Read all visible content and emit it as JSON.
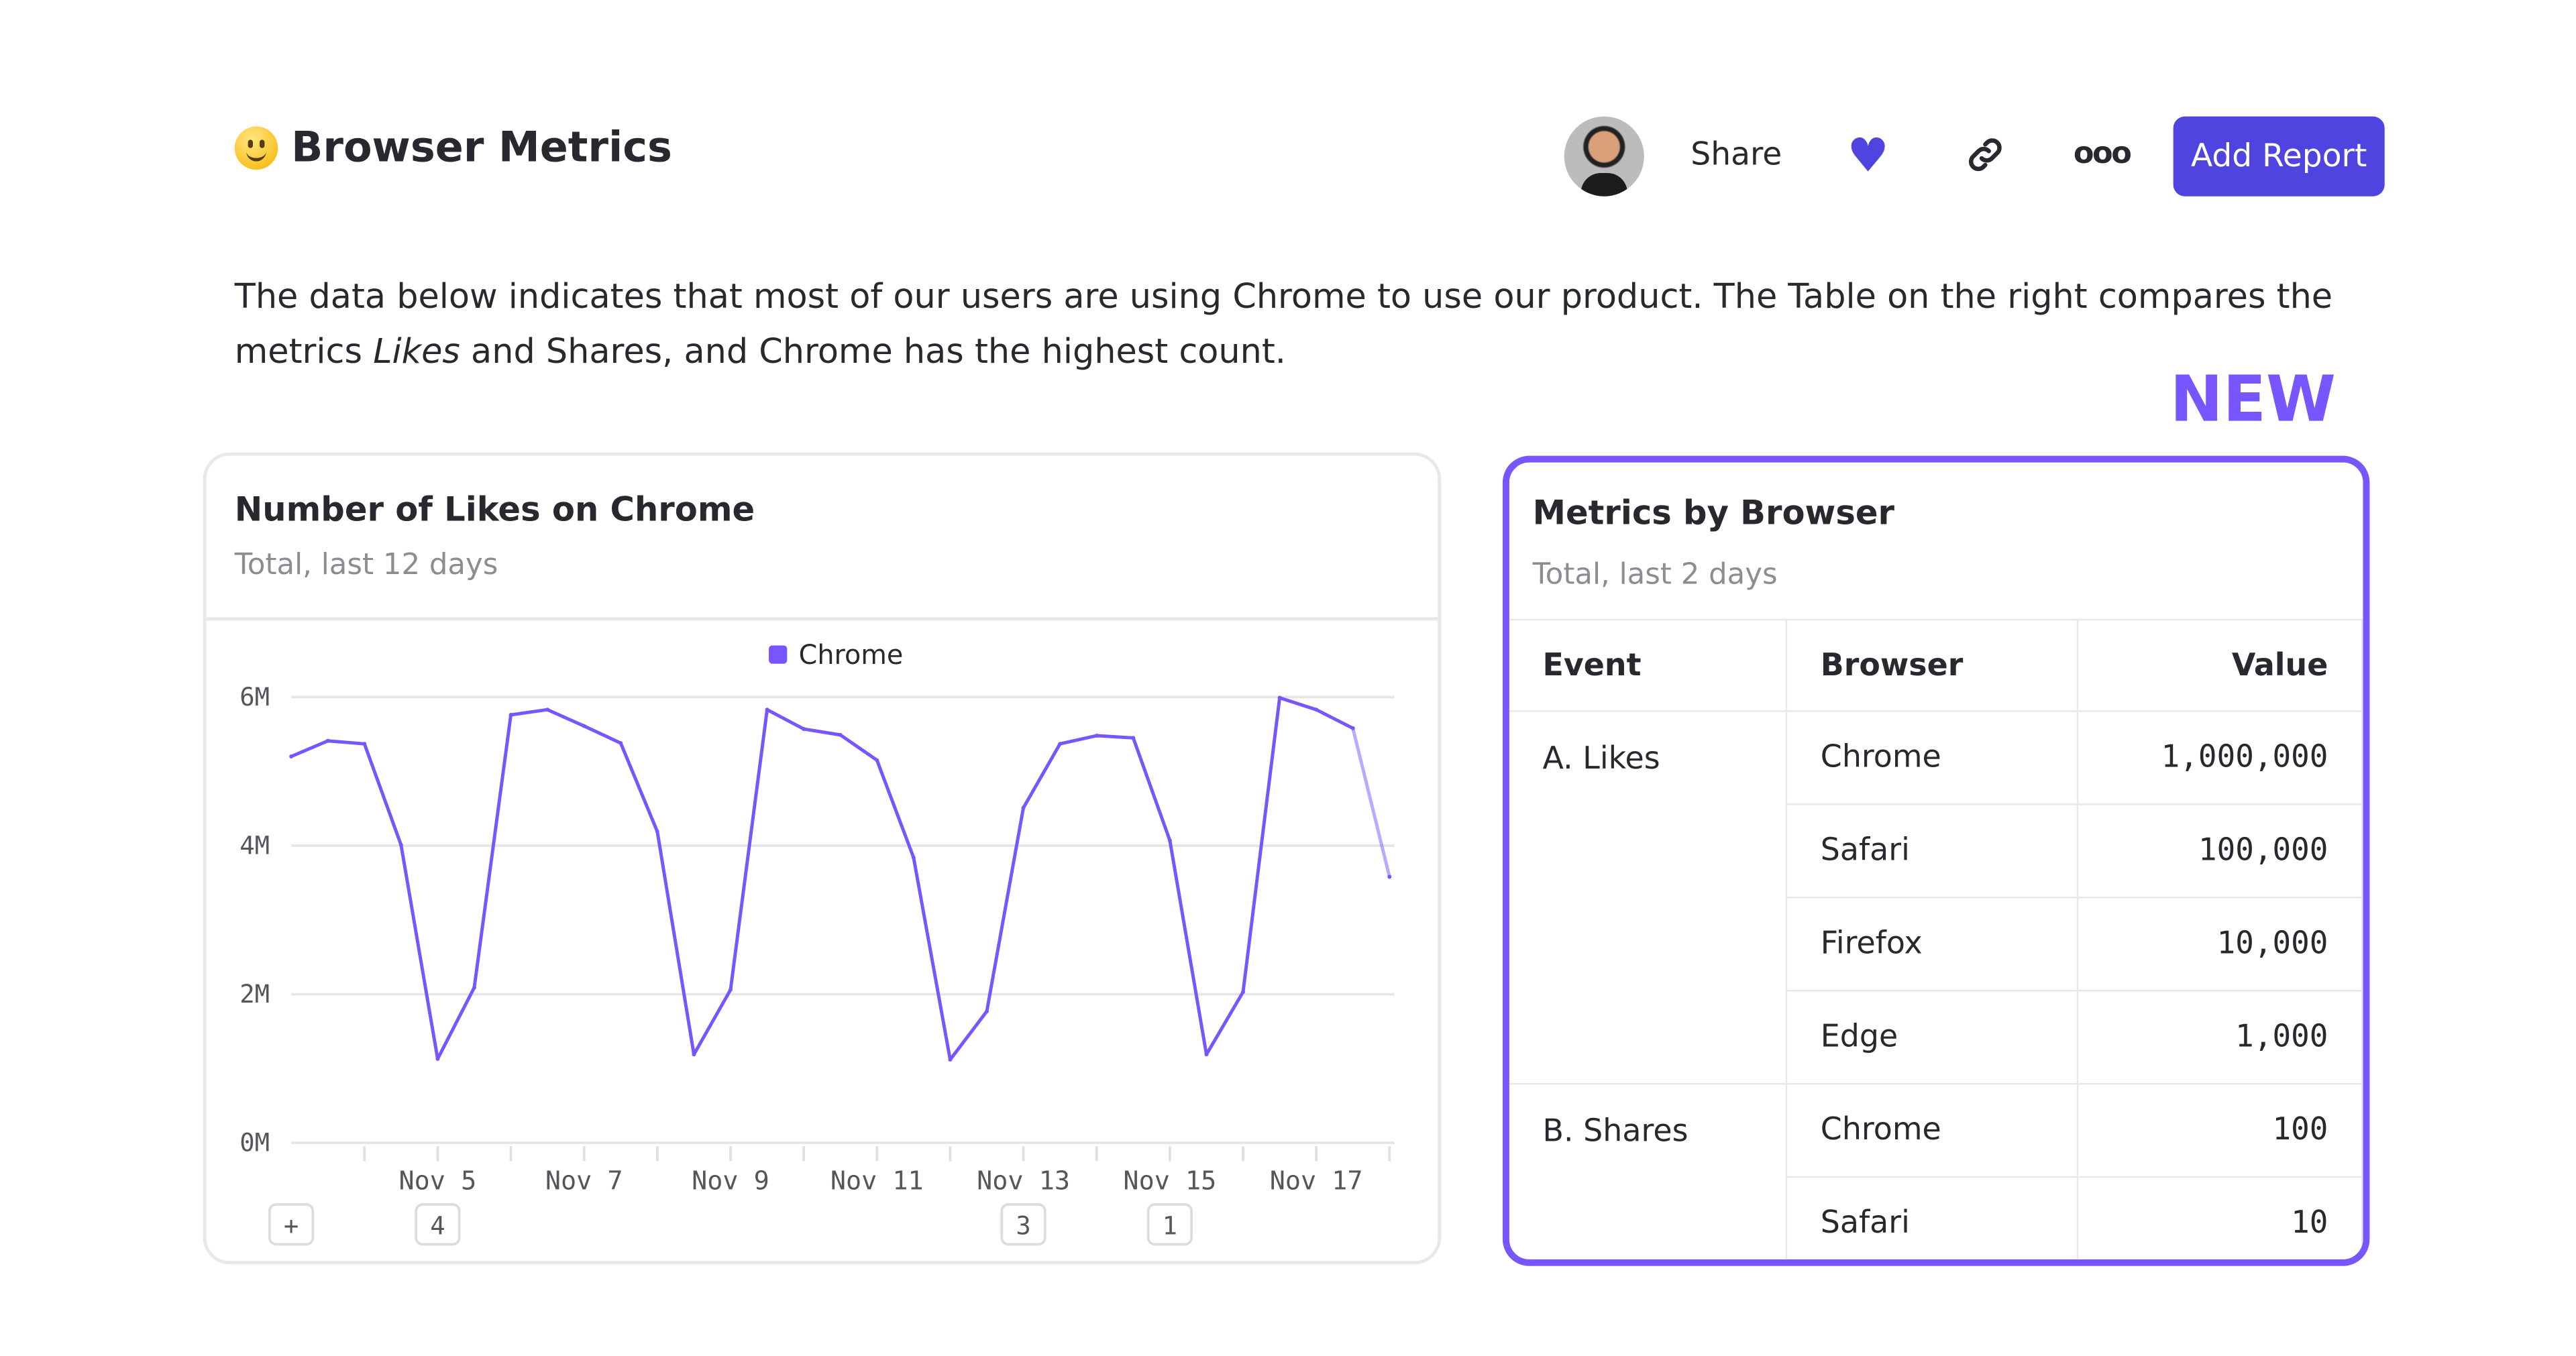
{
  "header": {
    "title": "Browser Metrics",
    "emoji_icon": "slightly-smiling-face",
    "share_label": "Share",
    "favorite_icon": "heart-icon",
    "link_icon": "link-icon",
    "more_icon": "more-icon",
    "more_label": "ooo",
    "add_report_label": "Add Report",
    "heart_glyph": "♥"
  },
  "description": {
    "part1": "The data below indicates that most of our users are using Chrome to use our product. The Table on the right compares the metrics ",
    "italic": "Likes",
    "part2": " and Shares, and Chrome has the highest count."
  },
  "new_badge": "NEW",
  "colors": {
    "accent": "#4f44e0",
    "series": "#7856ff",
    "new": "#7856ff"
  },
  "chart_card": {
    "title": "Number of Likes on Chrome",
    "subtitle": "Total, last 12 days",
    "annotations": [
      "+",
      "4",
      "3",
      "1"
    ]
  },
  "chart_data": {
    "type": "line",
    "legend": [
      "Chrome"
    ],
    "legend_placement": "top",
    "grid": true,
    "ylim": [
      0,
      6000000
    ],
    "y_ticks": [
      "0M",
      "2M",
      "4M",
      "6M"
    ],
    "x_tick_labels": [
      "Nov 5",
      "Nov 7",
      "Nov 9",
      "Nov 11",
      "Nov 13",
      "Nov 15",
      "Nov 17"
    ],
    "series": [
      {
        "name": "Chrome",
        "x": [
          "Nov 3 00:00",
          "Nov 3 12:00",
          "Nov 4 00:00",
          "Nov 4 12:00",
          "Nov 5 00:00",
          "Nov 5 12:00",
          "Nov 6 00:00",
          "Nov 6 12:00",
          "Nov 7 00:00",
          "Nov 7 12:00",
          "Nov 8 00:00",
          "Nov 8 12:00",
          "Nov 9 00:00",
          "Nov 9 12:00",
          "Nov 10 00:00",
          "Nov 10 12:00",
          "Nov 11 00:00",
          "Nov 11 12:00",
          "Nov 12 00:00",
          "Nov 12 12:00",
          "Nov 13 00:00",
          "Nov 13 12:00",
          "Nov 14 00:00",
          "Nov 14 12:00",
          "Nov 15 00:00",
          "Nov 15 12:00",
          "Nov 16 00:00",
          "Nov 16 12:00",
          "Nov 17 00:00",
          "Nov 17 12:00",
          "Nov 18 00:00"
        ],
        "values": [
          5200000,
          5410000,
          5370000,
          4010000,
          1130000,
          2090000,
          5760000,
          5830000,
          5610000,
          5380000,
          4190000,
          1190000,
          2060000,
          5830000,
          5570000,
          5490000,
          5150000,
          3840000,
          1120000,
          1770000,
          4510000,
          5370000,
          5480000,
          5450000,
          4070000,
          1190000,
          2030000,
          5990000,
          5830000,
          5580000,
          3580000
        ],
        "partial_last_segment": true
      }
    ]
  },
  "table_card": {
    "title": "Metrics by Browser",
    "subtitle": "Total, last 2 days",
    "columns": [
      "Event",
      "Browser",
      "Value"
    ],
    "groups": [
      {
        "event": "A. Likes",
        "rows": [
          {
            "browser": "Chrome",
            "value": "1,000,000"
          },
          {
            "browser": "Safari",
            "value": "100,000"
          },
          {
            "browser": "Firefox",
            "value": "10,000"
          },
          {
            "browser": "Edge",
            "value": "1,000"
          }
        ]
      },
      {
        "event": "B. Shares",
        "rows": [
          {
            "browser": "Chrome",
            "value": "100"
          },
          {
            "browser": "Safari",
            "value": "10"
          }
        ]
      }
    ]
  }
}
